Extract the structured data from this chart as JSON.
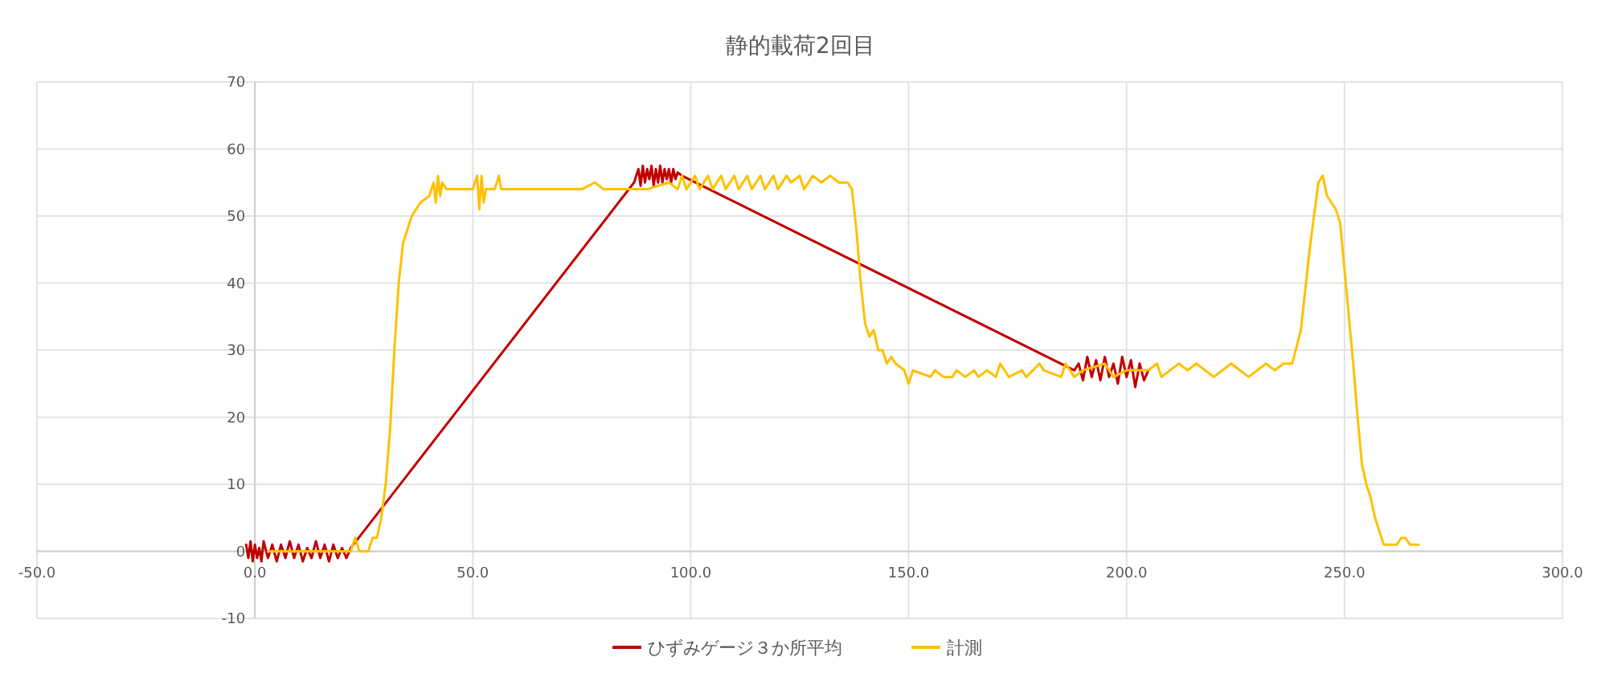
{
  "chart_data": {
    "type": "line",
    "title": "静的載荷2回目",
    "xlim": [
      -50,
      300
    ],
    "xticks": [
      {
        "value": -50,
        "label": "-50.0"
      },
      {
        "value": 0,
        "label": "0.0"
      },
      {
        "value": 50,
        "label": "50.0"
      },
      {
        "value": 100,
        "label": "100.0"
      },
      {
        "value": 150,
        "label": "150.0"
      },
      {
        "value": 200,
        "label": "200.0"
      },
      {
        "value": 250,
        "label": "250.0"
      },
      {
        "value": 300,
        "label": "300.0"
      }
    ],
    "ylim": [
      -10,
      70
    ],
    "yticks": [
      -10,
      0,
      10,
      20,
      30,
      40,
      50,
      60,
      70
    ],
    "grid": true,
    "legend": "bottom",
    "marker": "none",
    "line_style": "solid",
    "series": [
      {
        "name": "ひずみゲージ３か所平均",
        "color": "#c00000",
        "x": [
          -2,
          -1.5,
          -1,
          -0.5,
          0,
          0.5,
          1,
          1.5,
          2,
          3,
          4,
          5,
          6,
          7,
          8,
          9,
          10,
          11,
          12,
          13,
          14,
          15,
          16,
          17,
          18,
          19,
          20,
          21,
          22,
          87,
          88,
          88.5,
          89,
          89.5,
          90,
          90.5,
          91,
          91.5,
          92,
          92.5,
          93,
          93.5,
          94,
          94.5,
          95,
          95.5,
          96,
          96.5,
          97,
          98,
          188,
          189,
          190,
          191,
          192,
          193,
          194,
          195,
          196,
          197,
          198,
          199,
          200,
          201,
          202,
          203,
          204,
          205
        ],
        "values": [
          1,
          -1,
          1.5,
          -1.5,
          1,
          -1,
          0.5,
          -1.5,
          1.5,
          -1,
          1,
          -1.5,
          1,
          -1,
          1.5,
          -1,
          1,
          -1.5,
          0.5,
          -1,
          1.5,
          -1,
          1,
          -1.5,
          1,
          -1,
          0.5,
          -1,
          0.5,
          55,
          57,
          54.5,
          57.5,
          55,
          57,
          55.5,
          57.5,
          54.5,
          57,
          55,
          57.5,
          55,
          57,
          55.5,
          57,
          55,
          57,
          55.5,
          56.5,
          56,
          27,
          28,
          25.5,
          29,
          26,
          28.5,
          25.5,
          29,
          26,
          28,
          25,
          29,
          26,
          28.5,
          24.5,
          28,
          25.5,
          27
        ]
      },
      {
        "name": "計測",
        "color": "#ffc000",
        "x": [
          3,
          22,
          23,
          24,
          26,
          27,
          28,
          29,
          30,
          31,
          32,
          33,
          34,
          35,
          36,
          38,
          40,
          41,
          41.5,
          42,
          42.5,
          43,
          44,
          48,
          50,
          51,
          51.5,
          52,
          52.5,
          53,
          55,
          56,
          56.5,
          75,
          78,
          80,
          90,
          95,
          97,
          98,
          99,
          101,
          102,
          104,
          105,
          107,
          108,
          110,
          111,
          113,
          114,
          116,
          117,
          119,
          120,
          122,
          123,
          125,
          126,
          128,
          130,
          132,
          134,
          136,
          137,
          138,
          139,
          140,
          141,
          142,
          143,
          144,
          145,
          146,
          147,
          149,
          150,
          151,
          155,
          156,
          158,
          160,
          161,
          163,
          165,
          166,
          168,
          170,
          171,
          173,
          176,
          177,
          180,
          181,
          185,
          186,
          188,
          190,
          195,
          197,
          200,
          205,
          207,
          208,
          210,
          212,
          214,
          216,
          218,
          220,
          222,
          224,
          226,
          228,
          230,
          232,
          234,
          236,
          238,
          240,
          242,
          244,
          245,
          246,
          247,
          248,
          249,
          250,
          251,
          252,
          253,
          254,
          255,
          256,
          257,
          258,
          259,
          260,
          262,
          263,
          264,
          265,
          267
        ],
        "values": [
          0,
          0,
          2,
          0,
          0,
          2,
          2,
          5,
          10,
          18,
          30,
          40,
          46,
          48,
          50,
          52,
          53,
          55,
          52,
          56,
          53,
          55,
          54,
          54,
          54,
          56,
          51,
          56,
          52,
          54,
          54,
          56,
          54,
          54,
          55,
          54,
          54,
          55,
          54,
          56,
          54,
          56,
          54,
          56,
          54,
          56,
          54,
          56,
          54,
          56,
          54,
          56,
          54,
          56,
          54,
          56,
          55,
          56,
          54,
          56,
          55,
          56,
          55,
          55,
          54,
          48,
          40,
          34,
          32,
          33,
          30,
          30,
          28,
          29,
          28,
          27,
          25,
          27,
          26,
          27,
          26,
          26,
          27,
          26,
          27,
          26,
          27,
          26,
          28,
          26,
          27,
          26,
          28,
          27,
          26,
          28,
          26,
          27,
          28,
          26,
          27,
          27,
          28,
          26,
          27,
          28,
          27,
          28,
          27,
          26,
          27,
          28,
          27,
          26,
          27,
          28,
          27,
          28,
          28,
          33,
          45,
          55,
          56,
          53,
          52,
          51,
          49,
          42,
          35,
          28,
          20,
          13,
          10,
          8,
          5,
          3,
          1,
          1,
          1,
          2,
          2,
          1,
          1
        ]
      }
    ]
  }
}
